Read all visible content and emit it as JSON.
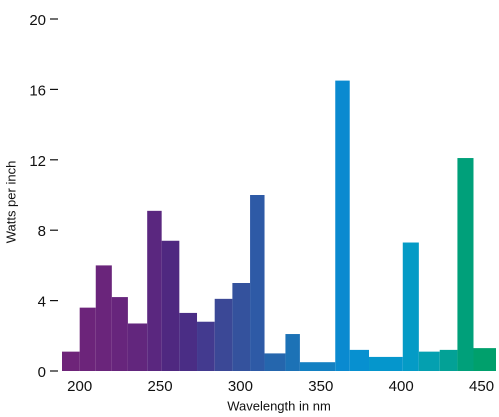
{
  "chart_data": {
    "type": "histogram",
    "x_label": "Wavelength in nm",
    "y_label": "Watts per inch",
    "bins": [
      189,
      200,
      210,
      220,
      230,
      242,
      251,
      262,
      273,
      284,
      295,
      306,
      315,
      328,
      337,
      359,
      368,
      380,
      401,
      411,
      424,
      435,
      445,
      459
    ],
    "values": [
      1.1,
      3.6,
      6.0,
      4.2,
      2.7,
      9.1,
      7.4,
      3.3,
      2.8,
      4.1,
      5.0,
      10.0,
      1.0,
      2.1,
      0.5,
      16.5,
      1.2,
      0.8,
      7.3,
      1.1,
      1.2,
      12.1,
      1.3
    ],
    "colors": [
      "#6e2479",
      "#6c247a",
      "#6a257b",
      "#67257c",
      "#62267d",
      "#5a277f",
      "#4f2880",
      "#4a2d85",
      "#433a8f",
      "#3b4896",
      "#34529d",
      "#2e5aa6",
      "#2566ad",
      "#1c72b6",
      "#1380c2",
      "#0a8ad0",
      "#0790d0",
      "#0596cc",
      "#049bc6",
      "#04a0b0",
      "#03a196",
      "#00a07a",
      "#00a06c"
    ],
    "xlim": [
      189,
      459
    ],
    "xticks": [
      200,
      250,
      300,
      350,
      400,
      450
    ],
    "ylim": [
      0,
      20
    ],
    "yticks": [
      0,
      4,
      8,
      12,
      16,
      20
    ]
  }
}
